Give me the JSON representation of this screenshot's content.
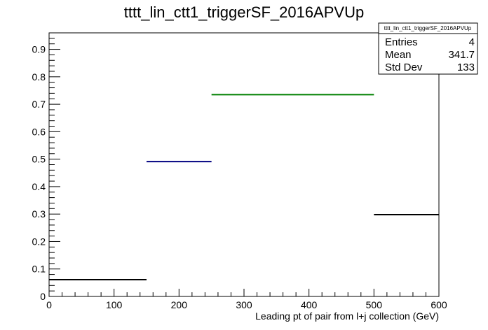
{
  "chart_data": {
    "type": "bar",
    "title": "tttt_lin_ctt1_triggerSF_2016APVUp",
    "xlabel": "Leading pt of pair from l+j collection (GeV)",
    "ylabel": "",
    "xlim": [
      0,
      600
    ],
    "ylim": [
      0,
      0.96
    ],
    "x_major_ticks": [
      0,
      100,
      200,
      300,
      400,
      500,
      600
    ],
    "x_tick_labels": [
      "0",
      "100",
      "200",
      "300",
      "400",
      "500",
      "600"
    ],
    "y_major_ticks": [
      0,
      0.1,
      0.2,
      0.3,
      0.4,
      0.5,
      0.6,
      0.7,
      0.8,
      0.9
    ],
    "y_tick_labels": [
      "0",
      "0.1",
      "0.2",
      "0.3",
      "0.4",
      "0.5",
      "0.6",
      "0.7",
      "0.8",
      "0.9"
    ],
    "grid": false,
    "bins": [
      {
        "low": 0,
        "high": 150,
        "value": 0.061,
        "color": "#000000"
      },
      {
        "low": 150,
        "high": 250,
        "value": 0.491,
        "color": "#000080"
      },
      {
        "low": 250,
        "high": 500,
        "value": 0.735,
        "color": "#008000"
      },
      {
        "low": 500,
        "high": 600,
        "value": 0.298,
        "color": "#000000"
      }
    ],
    "stats_box": {
      "title": "tttt_lin_ctt1_triggerSF_2016APVUp",
      "placement": "top-right",
      "rows": [
        {
          "label": "Entries",
          "value": "4"
        },
        {
          "label": "Mean",
          "value": "341.7"
        },
        {
          "label": "Std Dev",
          "value": "133"
        }
      ]
    }
  }
}
